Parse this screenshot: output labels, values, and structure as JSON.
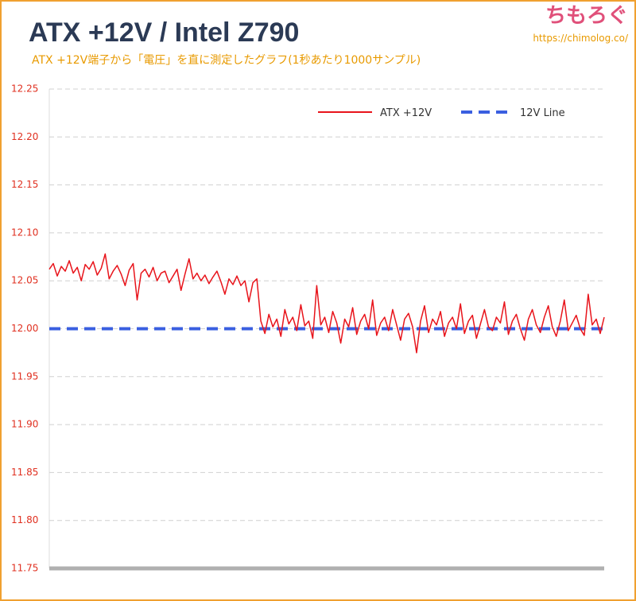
{
  "chart_data": {
    "type": "line",
    "title": "ATX +12V / Intel Z790",
    "subtitle": "ATX +12V端子から「電圧」を直に測定したグラフ(1秒あたり1000サンプル)",
    "brand": "ちもろぐ",
    "url": "https://chimolog.co/",
    "ylim": [
      11.75,
      12.25
    ],
    "yticks": [
      11.75,
      {
        "value": 11.8,
        "label": "11.80"
      },
      11.85,
      {
        "value": 11.9,
        "label": "11.90"
      },
      11.95,
      {
        "value": 12,
        "label": "12.00"
      },
      12.05,
      {
        "value": 12.1,
        "label": "12.10"
      },
      12.15,
      {
        "value": 12.2,
        "label": "12.20"
      },
      12.25
    ],
    "grid": true,
    "legend": "top-right",
    "series": [
      {
        "name": "ATX +12V",
        "color": "#e8141b",
        "values": [
          12.062,
          12.068,
          12.055,
          12.065,
          12.06,
          12.071,
          12.058,
          12.064,
          12.05,
          12.067,
          12.062,
          12.07,
          12.056,
          12.063,
          12.078,
          12.052,
          12.06,
          12.066,
          12.057,
          12.045,
          12.061,
          12.068,
          12.03,
          12.058,
          12.062,
          12.054,
          12.064,
          12.05,
          12.058,
          12.06,
          12.048,
          12.055,
          12.062,
          12.04,
          12.057,
          12.073,
          12.052,
          12.058,
          12.05,
          12.056,
          12.047,
          12.054,
          12.06,
          12.049,
          12.036,
          12.052,
          12.046,
          12.055,
          12.045,
          12.05,
          12.028,
          12.048,
          12.052,
          12.008,
          11.995,
          12.015,
          12.002,
          12.01,
          11.992,
          12.02,
          12.005,
          12.012,
          11.998,
          12.025,
          12.003,
          12.008,
          11.99,
          12.045,
          12.004,
          12.012,
          11.996,
          12.018,
          12.006,
          11.985,
          12.01,
          12.002,
          12.022,
          11.994,
          12.008,
          12.015,
          12.0,
          12.03,
          11.993,
          12.006,
          12.012,
          11.998,
          12.02,
          12.004,
          11.988,
          12.01,
          12.016,
          12.002,
          11.975,
          12.008,
          12.024,
          11.996,
          12.01,
          12.004,
          12.018,
          11.992,
          12.006,
          12.012,
          12.0,
          12.026,
          11.995,
          12.008,
          12.014,
          11.99,
          12.005,
          12.02,
          12.002,
          11.998,
          12.012,
          12.006,
          12.028,
          11.994,
          12.008,
          12.015,
          12.0,
          11.988,
          12.01,
          12.02,
          12.004,
          11.996,
          12.012,
          12.024,
          12.002,
          11.992,
          12.008,
          12.03,
          11.998,
          12.006,
          12.014,
          12.0,
          11.993,
          12.036,
          12.004,
          12.01,
          11.995,
          12.012
        ]
      }
    ],
    "reference_line": {
      "name": "12V Line",
      "color": "#3a5fe0",
      "value": 12
    }
  }
}
